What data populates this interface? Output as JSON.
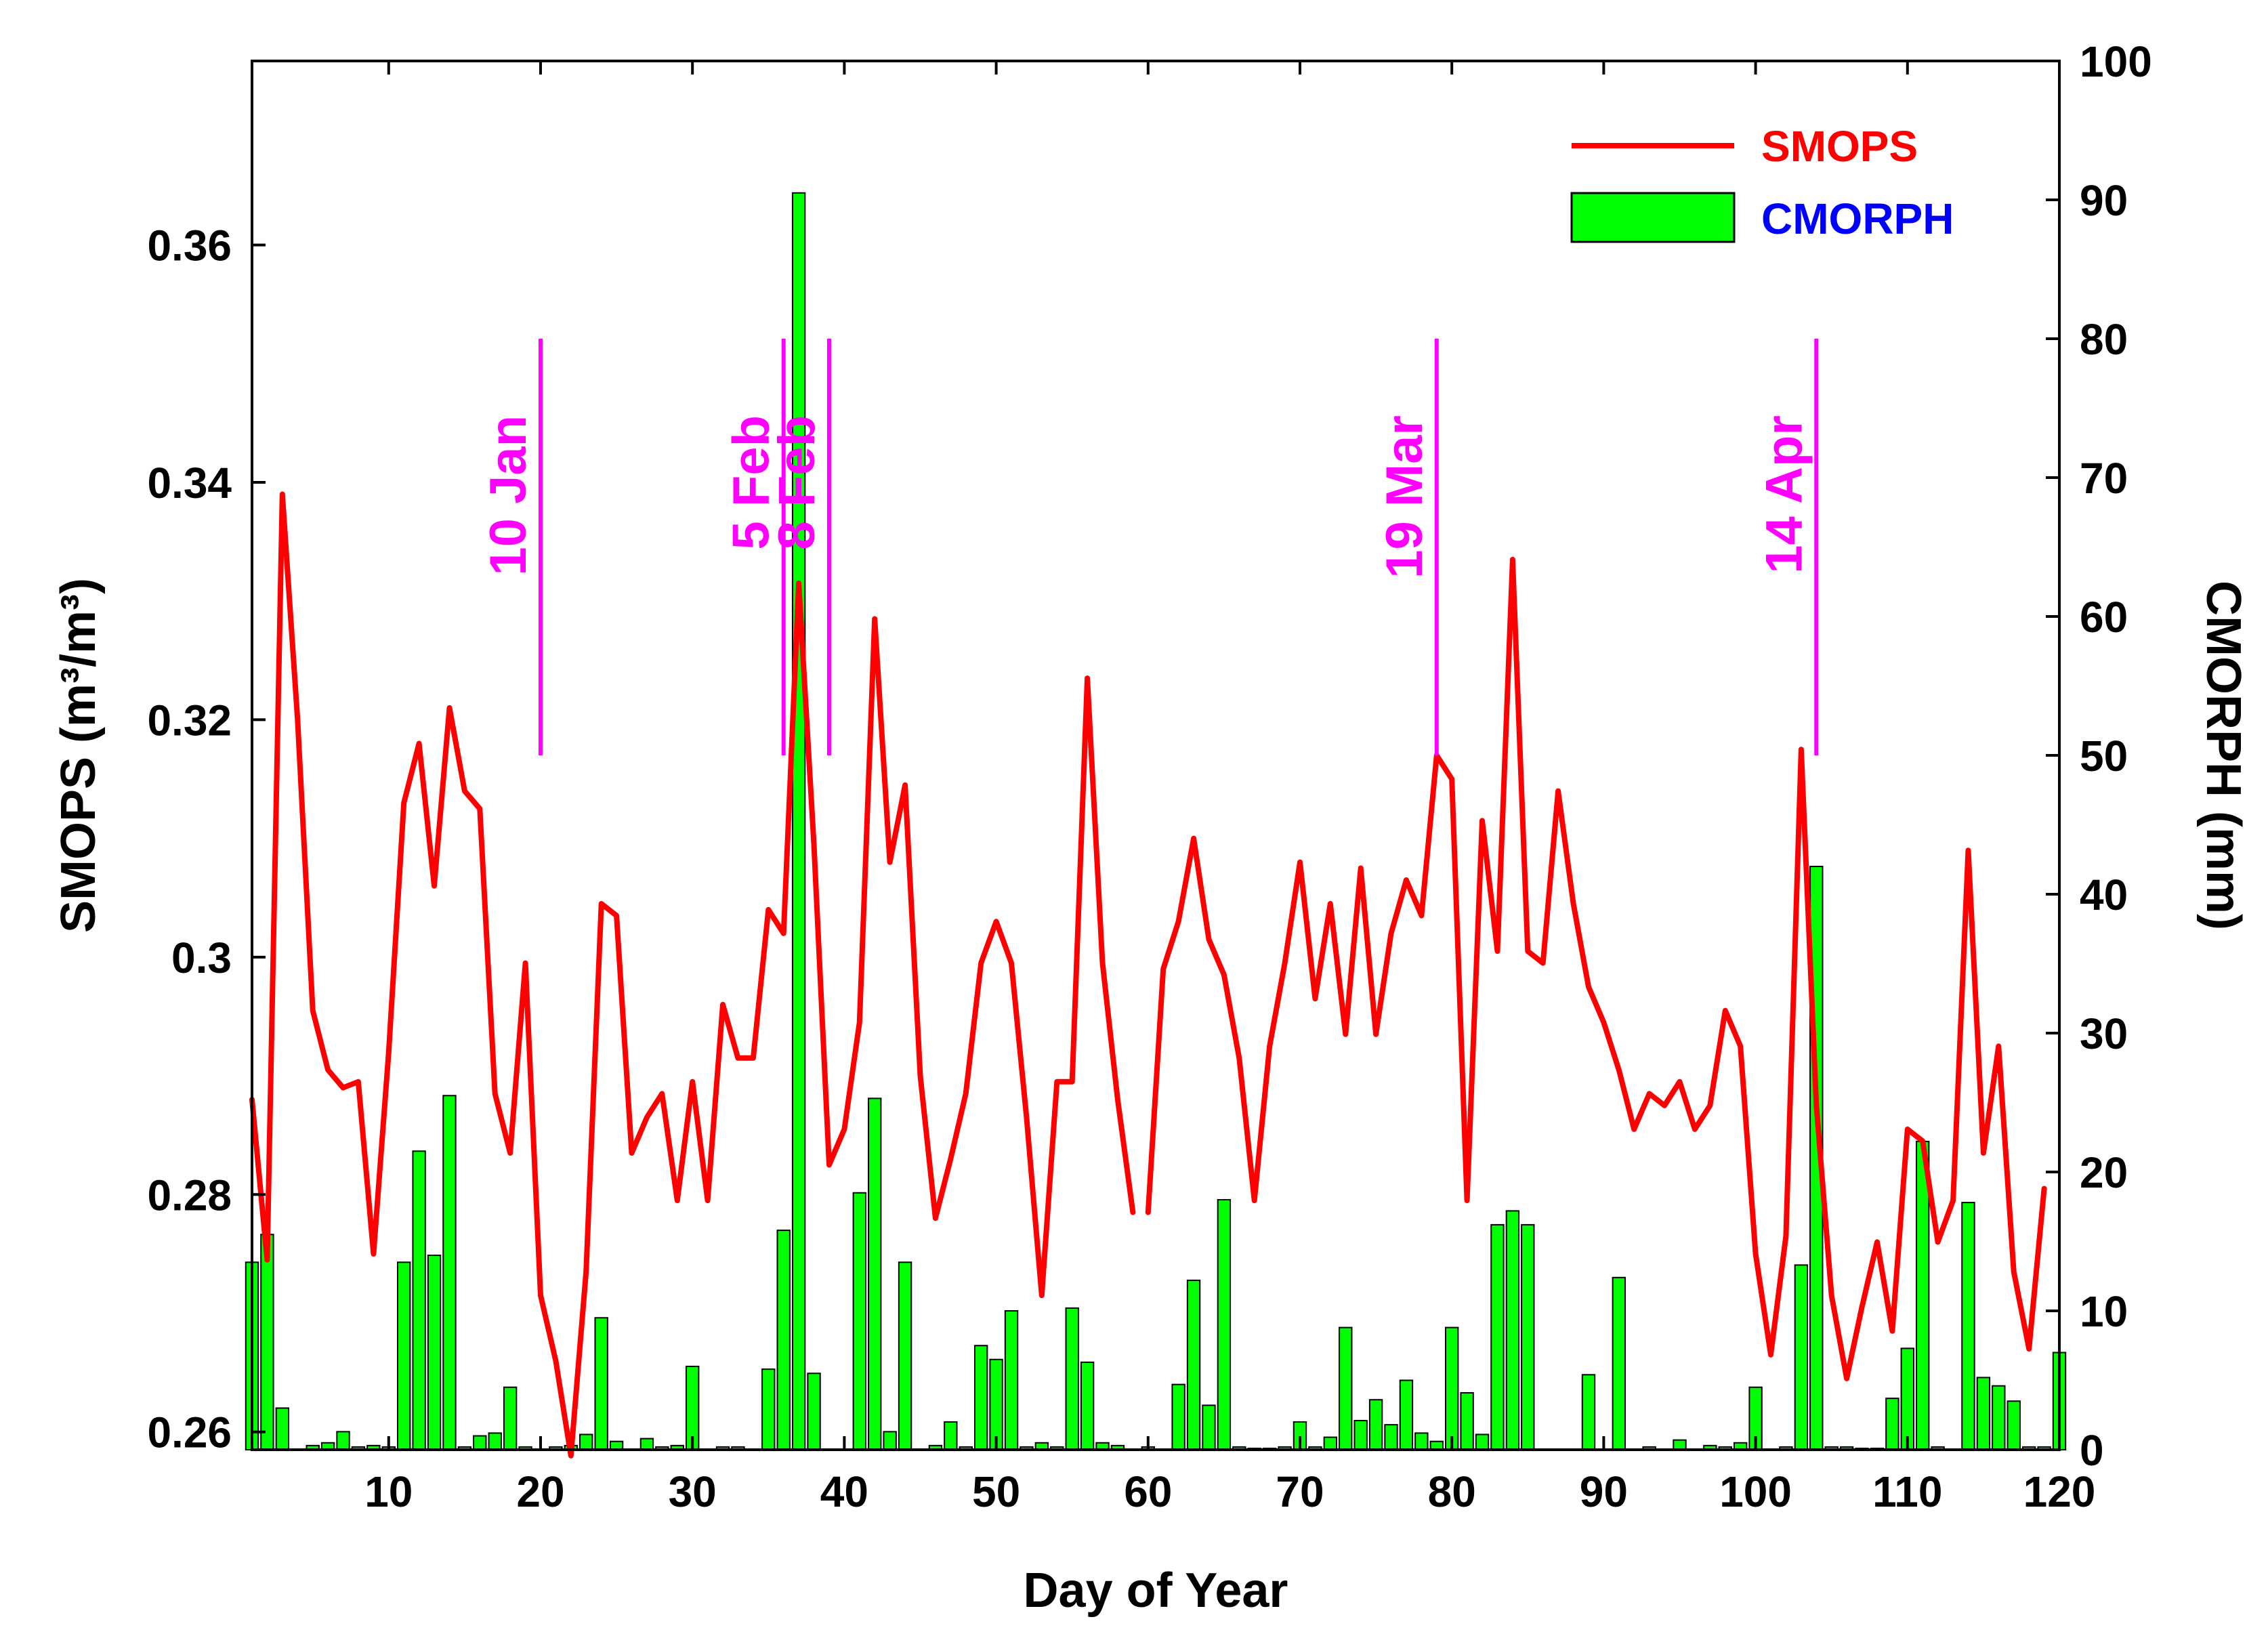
{
  "chart_data": {
    "type": "line+bar",
    "title": "",
    "xlabel": "Day of Year",
    "ylabel_left": "SMOPS (m³/m³)",
    "ylabel_right": "CMORPH (mm)",
    "xlim": [
      1,
      120
    ],
    "ylim_left": [
      0.2585,
      0.3755
    ],
    "ylim_right": [
      0,
      100
    ],
    "x_ticks": [
      10,
      20,
      30,
      40,
      50,
      60,
      70,
      80,
      90,
      100,
      110,
      120
    ],
    "y_left_ticks": [
      "0.26",
      "0.28",
      "0.3",
      "0.32",
      "0.34",
      "0.36"
    ],
    "y_right_ticks": [
      0,
      10,
      20,
      30,
      40,
      50,
      60,
      70,
      80,
      90,
      100
    ],
    "legend": {
      "position": "top-right",
      "entries": [
        {
          "label": "SMOPS",
          "kind": "line",
          "color": "#ff0000",
          "text_color": "#ff0000"
        },
        {
          "label": "CMORPH",
          "kind": "bar",
          "color": "#00ff00",
          "text_color": "#0000ff"
        }
      ]
    },
    "colors": {
      "smops": "#ff0000",
      "cmorph_fill": "#00ff00",
      "cmorph_edge": "#000000",
      "events": "#ff00ff"
    },
    "events": [
      {
        "day": 20,
        "label": "10 Jan"
      },
      {
        "day": 36,
        "label": "5 Feb"
      },
      {
        "day": 39,
        "label": "8 Feb"
      },
      {
        "day": 79,
        "label": "19 Mar"
      },
      {
        "day": 104,
        "label": "14 Apr"
      }
    ],
    "smops": [
      [
        1,
        0.288
      ],
      [
        2,
        0.2745
      ],
      [
        3,
        0.339
      ],
      [
        4,
        0.32
      ],
      [
        5,
        0.2955
      ],
      [
        6,
        0.2905
      ],
      [
        7,
        0.289
      ],
      [
        8,
        0.2895
      ],
      [
        9,
        0.275
      ],
      [
        10,
        0.292
      ],
      [
        11,
        0.313
      ],
      [
        12,
        0.318
      ],
      [
        13,
        0.306
      ],
      [
        14,
        0.321
      ],
      [
        15,
        0.314
      ],
      [
        16,
        0.3125
      ],
      [
        17,
        0.2885
      ],
      [
        18,
        0.2835
      ],
      [
        19,
        0.2995
      ],
      [
        20,
        0.2715
      ],
      [
        21,
        0.266
      ],
      [
        22,
        0.258
      ],
      [
        23,
        0.2735
      ],
      [
        24,
        0.3045
      ],
      [
        25,
        0.3035
      ],
      [
        26,
        0.2835
      ],
      [
        27,
        0.2865
      ],
      [
        28,
        0.2885
      ],
      [
        29,
        0.2795
      ],
      [
        30,
        0.2895
      ],
      [
        31,
        0.2795
      ],
      [
        32,
        0.296
      ],
      [
        33,
        0.2915
      ],
      [
        34,
        0.2915
      ],
      [
        35,
        0.304
      ],
      [
        36,
        0.302
      ],
      [
        37,
        0.3315
      ],
      [
        38,
        0.3095
      ],
      [
        39,
        0.2825
      ],
      [
        40,
        0.2855
      ],
      [
        41,
        0.2945
      ],
      [
        42,
        0.3285
      ],
      [
        43,
        0.308
      ],
      [
        44,
        0.3145
      ],
      [
        45,
        0.29
      ],
      [
        46,
        0.278
      ],
      [
        47,
        0.283
      ],
      [
        48,
        0.2885
      ],
      [
        49,
        0.2995
      ],
      [
        50,
        0.303
      ],
      [
        51,
        0.2995
      ],
      [
        52,
        0.2865
      ],
      [
        53,
        0.2715
      ],
      [
        54,
        0.2895
      ],
      [
        55,
        0.2895
      ],
      [
        56,
        0.3235
      ],
      [
        57,
        0.2995
      ],
      [
        58,
        0.288
      ],
      [
        59,
        0.2785
      ],
      null,
      [
        60,
        0.2785
      ],
      [
        61,
        0.299
      ],
      [
        62,
        0.303
      ],
      [
        63,
        0.31
      ],
      [
        64,
        0.3015
      ],
      [
        65,
        0.2985
      ],
      [
        66,
        0.2915
      ],
      [
        67,
        0.2795
      ],
      [
        68,
        0.2925
      ],
      [
        69,
        0.2995
      ],
      [
        70,
        0.308
      ],
      [
        71,
        0.2965
      ],
      [
        72,
        0.3045
      ],
      [
        73,
        0.2935
      ],
      [
        74,
        0.3075
      ],
      [
        75,
        0.2935
      ],
      [
        76,
        0.302
      ],
      [
        77,
        0.3065
      ],
      [
        78,
        0.3035
      ],
      [
        79,
        0.317
      ],
      [
        80,
        0.315
      ],
      [
        81,
        0.2795
      ],
      [
        82,
        0.3115
      ],
      [
        83,
        0.3005
      ],
      [
        84,
        0.3335
      ],
      [
        85,
        0.3005
      ],
      [
        86,
        0.2995
      ],
      [
        87,
        0.314
      ],
      [
        88,
        0.3045
      ],
      [
        89,
        0.2975
      ],
      [
        90,
        0.2945
      ],
      [
        91,
        0.2905
      ],
      [
        92,
        0.2855
      ],
      [
        93,
        0.2885
      ],
      [
        94,
        0.2875
      ],
      [
        95,
        0.2895
      ],
      [
        96,
        0.2855
      ],
      [
        97,
        0.2875
      ],
      [
        98,
        0.2955
      ],
      [
        99,
        0.2925
      ],
      [
        100,
        0.275
      ],
      [
        101,
        0.2665
      ],
      [
        102,
        0.2765
      ],
      [
        103,
        0.3175
      ],
      [
        104,
        0.2875
      ],
      [
        105,
        0.2715
      ],
      [
        106,
        0.2645
      ],
      [
        107,
        0.2705
      ],
      [
        108,
        0.276
      ],
      [
        109,
        0.2685
      ],
      [
        110,
        0.2855
      ],
      [
        111,
        0.2845
      ],
      [
        112,
        0.276
      ],
      [
        113,
        0.2795
      ],
      [
        114,
        0.309
      ],
      [
        115,
        0.2835
      ],
      [
        116,
        0.2925
      ],
      [
        117,
        0.2735
      ],
      [
        118,
        0.267
      ],
      [
        119,
        0.2805
      ]
    ],
    "cmorph": [
      [
        1,
        13.5
      ],
      [
        2,
        15.5
      ],
      [
        3,
        3
      ],
      [
        5,
        0.3
      ],
      [
        6,
        0.5
      ],
      [
        7,
        1.3
      ],
      [
        8,
        0.2
      ],
      [
        9,
        0.3
      ],
      [
        10,
        0.2
      ],
      [
        11,
        13.5
      ],
      [
        12,
        21.5
      ],
      [
        13,
        14
      ],
      [
        14,
        25.5
      ],
      [
        15,
        0.2
      ],
      [
        16,
        1
      ],
      [
        17,
        1.2
      ],
      [
        18,
        4.5
      ],
      [
        19,
        0.2
      ],
      [
        21,
        0.2
      ],
      [
        22,
        0.3
      ],
      [
        23,
        1.1
      ],
      [
        24,
        9.5
      ],
      [
        25,
        0.6
      ],
      [
        27,
        0.8
      ],
      [
        28,
        0.2
      ],
      [
        29,
        0.3
      ],
      [
        30,
        6
      ],
      [
        32,
        0.2
      ],
      [
        33,
        0.2
      ],
      [
        35,
        5.8
      ],
      [
        36,
        15.8
      ],
      [
        37,
        90.5
      ],
      [
        38,
        5.5
      ],
      [
        41,
        18.5
      ],
      [
        42,
        25.3
      ],
      [
        43,
        1.3
      ],
      [
        44,
        13.5
      ],
      [
        46,
        0.3
      ],
      [
        47,
        2
      ],
      [
        48,
        0.2
      ],
      [
        49,
        7.5
      ],
      [
        50,
        6.5
      ],
      [
        51,
        10
      ],
      [
        52,
        0.2
      ],
      [
        53,
        0.5
      ],
      [
        54,
        0.2
      ],
      [
        55,
        10.2
      ],
      [
        56,
        6.3
      ],
      [
        57,
        0.5
      ],
      [
        58,
        0.3
      ],
      [
        60,
        0.2
      ],
      [
        62,
        4.7
      ],
      [
        63,
        12.2
      ],
      [
        64,
        3.2
      ],
      [
        65,
        18
      ],
      [
        66,
        0.2
      ],
      [
        67,
        0.1
      ],
      [
        68,
        0.1
      ],
      [
        69,
        0.2
      ],
      [
        70,
        2
      ],
      [
        71,
        0.2
      ],
      [
        72,
        0.9
      ],
      [
        73,
        8.8
      ],
      [
        74,
        2.1
      ],
      [
        75,
        3.6
      ],
      [
        76,
        1.8
      ],
      [
        77,
        5
      ],
      [
        78,
        1.2
      ],
      [
        79,
        0.6
      ],
      [
        80,
        8.8
      ],
      [
        81,
        4.1
      ],
      [
        82,
        1.1
      ],
      [
        83,
        16.2
      ],
      [
        84,
        17.2
      ],
      [
        85,
        16.2
      ],
      [
        89,
        5.4
      ],
      [
        91,
        12.4
      ],
      [
        93,
        0.2
      ],
      [
        95,
        0.7
      ],
      [
        97,
        0.3
      ],
      [
        98,
        0.2
      ],
      [
        99,
        0.5
      ],
      [
        100,
        4.5
      ],
      [
        102,
        0.2
      ],
      [
        103,
        13.3
      ],
      [
        104,
        42
      ],
      [
        105,
        0.2
      ],
      [
        106,
        0.2
      ],
      [
        107,
        0.1
      ],
      [
        108,
        0.1
      ],
      [
        109,
        3.7
      ],
      [
        110,
        7.3
      ],
      [
        111,
        22.2
      ],
      [
        112,
        0.2
      ],
      [
        114,
        17.8
      ],
      [
        115,
        5.2
      ],
      [
        116,
        4.6
      ],
      [
        117,
        3.5
      ],
      [
        118,
        0.2
      ],
      [
        119,
        0.2
      ],
      [
        120,
        7
      ]
    ]
  }
}
